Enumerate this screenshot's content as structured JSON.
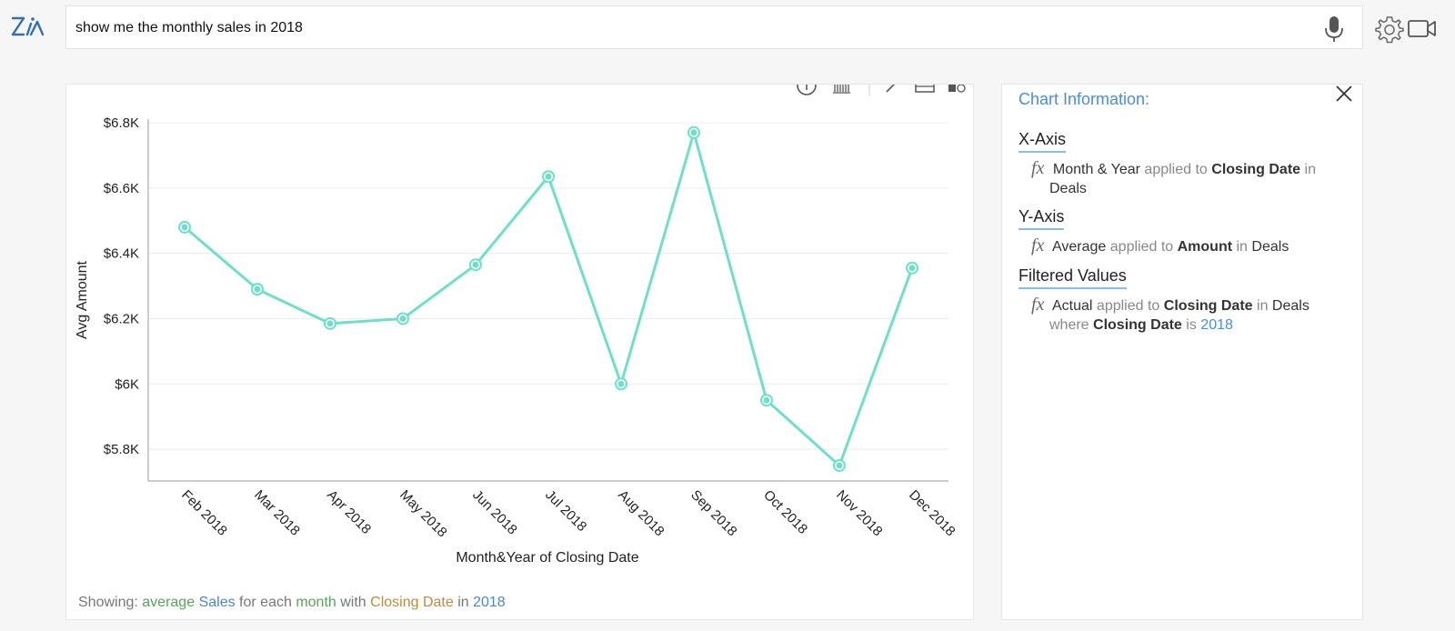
{
  "search": {
    "query": "show me the monthly sales in 2018"
  },
  "icons": {
    "logo": "zia-logo",
    "mic": "microphone-icon",
    "settings": "gear-icon",
    "video": "video-camera-icon",
    "toolbar": [
      "info-icon",
      "barcode-icon",
      "pencil-icon",
      "card-icon",
      "add-widget-icon"
    ]
  },
  "colors": {
    "line": "#6ee0c8",
    "accent": "#4a8ed6"
  },
  "chart_data": {
    "type": "line",
    "xlabel": "Month&Year of Closing Date",
    "ylabel": "Avg Amount",
    "categories": [
      "Feb 2018",
      "Mar 2018",
      "Apr 2018",
      "May 2018",
      "Jun 2018",
      "Jul 2018",
      "Aug 2018",
      "Sep 2018",
      "Oct 2018",
      "Nov 2018",
      "Dec 2018"
    ],
    "values": [
      6480,
      6290,
      6185,
      6200,
      6365,
      6635,
      6000,
      6770,
      5950,
      5750,
      6355
    ],
    "yticks": [
      "$5.8K",
      "$6K",
      "$6.2K",
      "$6.4K",
      "$6.6K",
      "$6.8K"
    ],
    "ytick_values": [
      5800,
      6000,
      6200,
      6400,
      6600,
      6800
    ],
    "ylim": [
      5700,
      6800
    ],
    "grid": true
  },
  "showing": {
    "prefix": "Showing:",
    "w1": "average",
    "w2": "Sales",
    "w3": "for each",
    "w4": "month",
    "w5": "with",
    "w6": "Closing Date",
    "w7": "in",
    "w8": "2018"
  },
  "info": {
    "title": "Chart Information:",
    "x_axis": {
      "heading": "X-Axis",
      "fx": "fx",
      "func": "Month & Year",
      "applied": "applied to",
      "field": "Closing Date",
      "in": "in",
      "table": "Deals"
    },
    "y_axis": {
      "heading": "Y-Axis",
      "fx": "fx",
      "func": "Average",
      "applied": "applied to",
      "field": "Amount",
      "in": "in",
      "table": "Deals"
    },
    "filters": {
      "heading": "Filtered Values",
      "fx": "fx",
      "func": "Actual",
      "applied": "applied to",
      "field": "Closing Date",
      "in": "in",
      "table": "Deals",
      "where": "where",
      "field2": "Closing Date",
      "is": "is",
      "value": "2018"
    }
  }
}
